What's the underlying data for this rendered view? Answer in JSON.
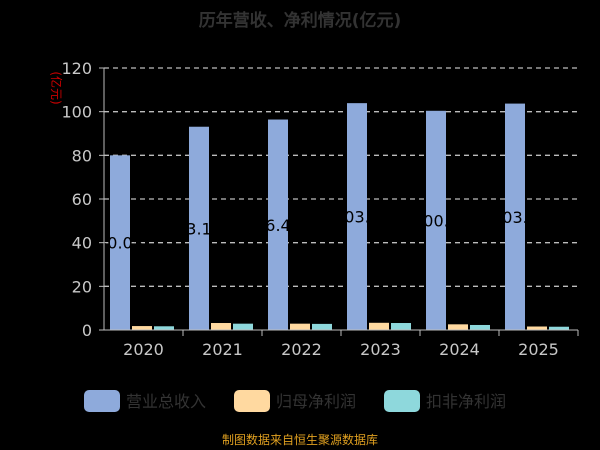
{
  "chart_data": {
    "type": "bar",
    "title": "历年营收、净利情况(亿元)",
    "ylabel": "(亿元)",
    "ylim": [
      0,
      120
    ],
    "yticks": [
      0,
      20,
      40,
      60,
      80,
      100,
      120
    ],
    "grid": true,
    "legend_position": "bottom",
    "categories": [
      "2020",
      "2021",
      "2022",
      "2023",
      "2024",
      "2025"
    ],
    "series": [
      {
        "name": "营业总收入",
        "color": "#8eaadb",
        "values": [
          80.0,
          93.1,
          96.4,
          103.9,
          100.4,
          103.7
        ],
        "labels": [
          "80.05",
          "93.15",
          "96.41",
          "103.9",
          "100.4",
          "103.7"
        ]
      },
      {
        "name": "归母净利润",
        "color": "#ffd9a0",
        "values": [
          1.8,
          3.2,
          2.9,
          3.3,
          2.6,
          1.6
        ]
      },
      {
        "name": "扣非净利润",
        "color": "#8ed8dc",
        "values": [
          1.7,
          2.9,
          2.8,
          3.2,
          2.3,
          1.5
        ]
      }
    ],
    "source": "制图数据来自恒生聚源数据库"
  },
  "colors": {
    "background": "#000000",
    "axis": "#bdbdbd",
    "grid": "#bdbdbd",
    "tick_text": "#c8c8c8",
    "title": "#333333",
    "ylabel": "#cc0000",
    "data_label": "#000000",
    "legend_text": "#333333",
    "source": "#e0a020"
  }
}
